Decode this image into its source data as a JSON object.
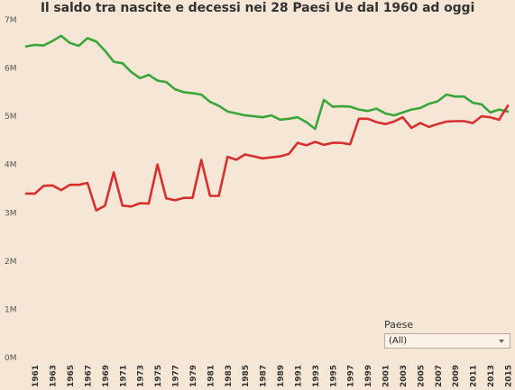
{
  "chart_data": {
    "type": "line",
    "title": "Il saldo tra nascite e decessi nei 28 Paesi Ue dal 1960 ad oggi",
    "xlabel": "",
    "ylabel": "",
    "ylim": [
      0,
      7
    ],
    "yticks": [
      "0M",
      "1M",
      "2M",
      "3M",
      "4M",
      "5M",
      "6M",
      "7M"
    ],
    "x": [
      1960,
      1961,
      1962,
      1963,
      1964,
      1965,
      1966,
      1967,
      1968,
      1969,
      1970,
      1971,
      1972,
      1973,
      1974,
      1975,
      1976,
      1977,
      1978,
      1979,
      1980,
      1981,
      1982,
      1983,
      1984,
      1985,
      1986,
      1987,
      1988,
      1989,
      1990,
      1991,
      1992,
      1993,
      1994,
      1995,
      1996,
      1997,
      1998,
      1999,
      2000,
      2001,
      2002,
      2003,
      2004,
      2005,
      2006,
      2007,
      2008,
      2009,
      2010,
      2011,
      2012,
      2013,
      2014,
      2015
    ],
    "xticks": [
      "1961",
      "1963",
      "1965",
      "1967",
      "1969",
      "1971",
      "1973",
      "1975",
      "1977",
      "1979",
      "1981",
      "1983",
      "1985",
      "1987",
      "1989",
      "1991",
      "1993",
      "1995",
      "1997",
      "1999",
      "2001",
      "2003",
      "2005",
      "2007",
      "2009",
      "2011",
      "2013",
      "2015"
    ],
    "series": [
      {
        "color": "#3aa63a",
        "values": [
          6.45,
          6.48,
          6.47,
          6.56,
          6.67,
          6.52,
          6.46,
          6.62,
          6.55,
          6.36,
          6.13,
          6.1,
          5.92,
          5.79,
          5.86,
          5.74,
          5.71,
          5.56,
          5.5,
          5.48,
          5.45,
          5.3,
          5.22,
          5.1,
          5.06,
          5.02,
          5.0,
          4.98,
          5.02,
          4.93,
          4.95,
          4.98,
          4.88,
          4.74,
          5.34,
          5.2,
          5.21,
          5.2,
          5.14,
          5.11,
          5.16,
          5.06,
          5.02,
          5.08,
          5.14,
          5.17,
          5.26,
          5.31,
          5.45,
          5.41,
          5.41,
          5.28,
          5.25,
          5.08,
          5.14,
          5.1
        ]
      },
      {
        "color": "#d62f2f",
        "values": [
          3.4,
          3.4,
          3.56,
          3.57,
          3.47,
          3.58,
          3.58,
          3.62,
          3.05,
          3.15,
          3.84,
          3.15,
          3.13,
          3.2,
          3.19,
          4.0,
          3.3,
          3.26,
          3.31,
          3.31,
          4.1,
          3.35,
          3.35,
          4.16,
          4.1,
          4.21,
          4.17,
          4.13,
          4.15,
          4.17,
          4.22,
          4.45,
          4.4,
          4.47,
          4.41,
          4.45,
          4.45,
          4.42,
          4.95,
          4.95,
          4.88,
          4.84,
          4.89,
          4.98,
          4.76,
          4.86,
          4.78,
          4.84,
          4.89,
          4.9,
          4.9,
          4.86,
          5.0,
          4.98,
          4.93,
          5.22
        ]
      }
    ],
    "grid": false
  },
  "filter": {
    "label": "Paese",
    "selected": "(All)"
  },
  "colors": {
    "background": "#f6e6d6",
    "green_series": "#3aa63a",
    "red_series": "#d62f2f"
  }
}
